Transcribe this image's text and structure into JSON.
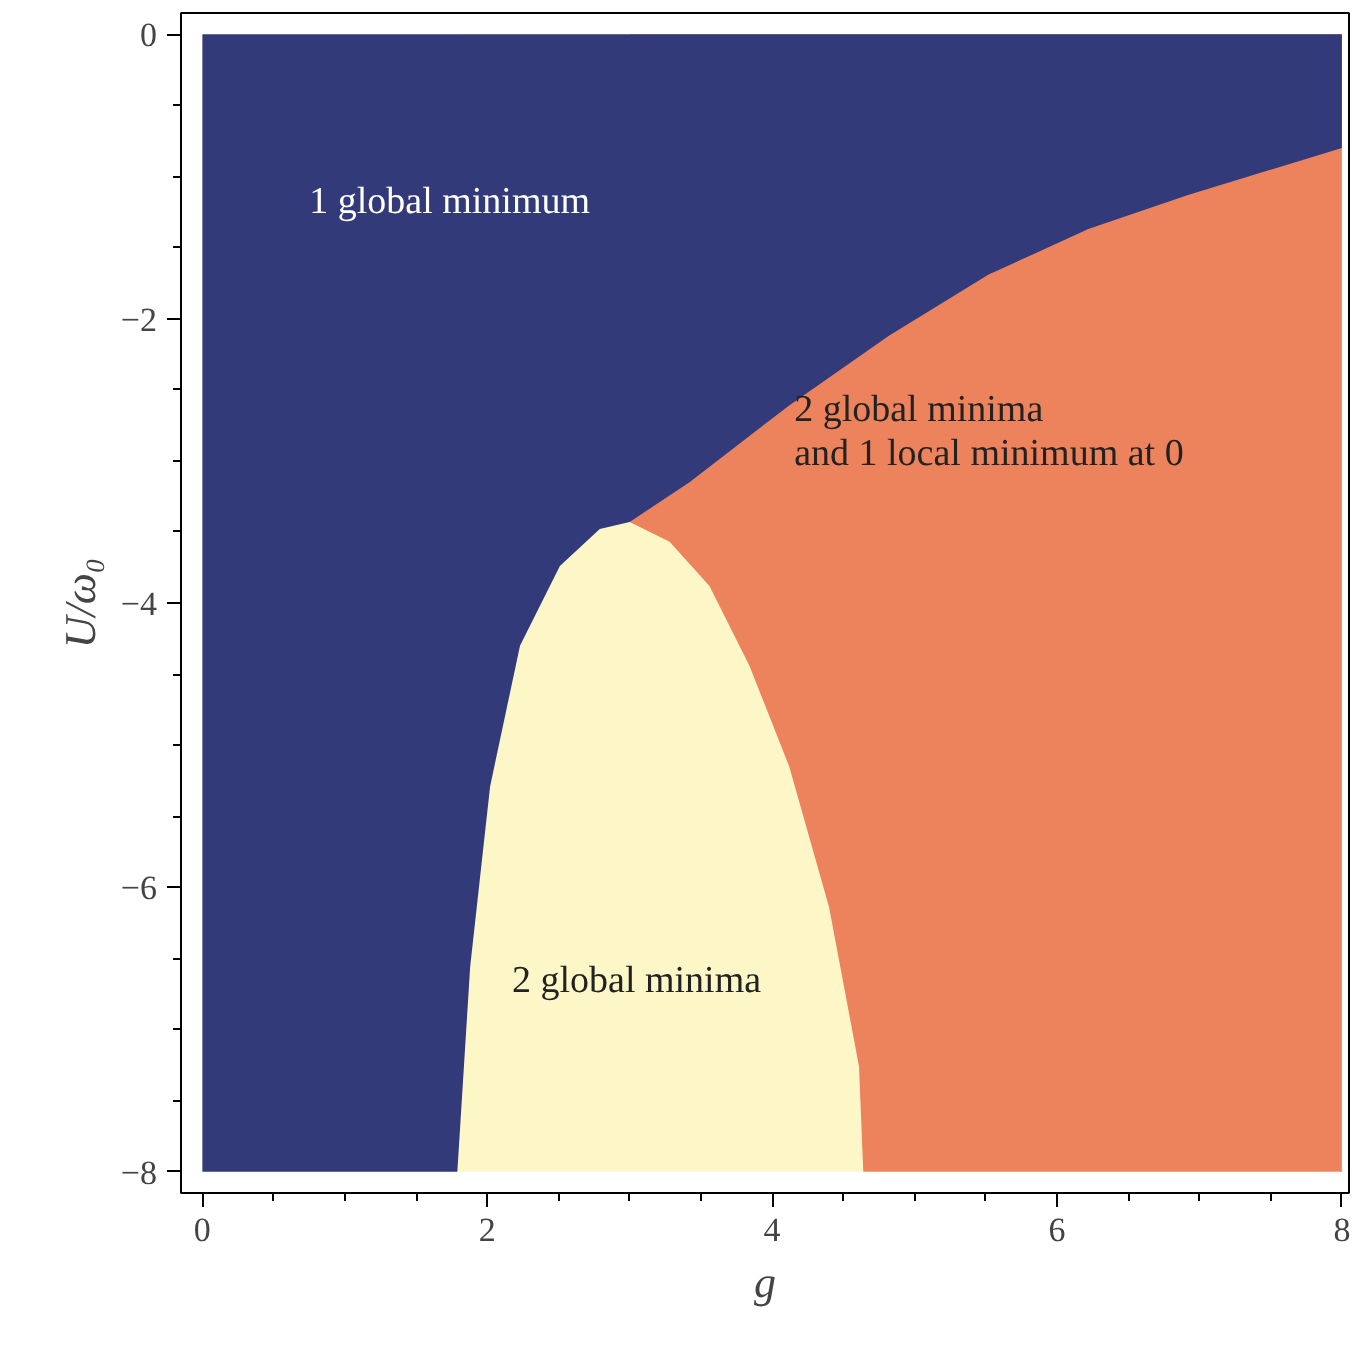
{
  "chart_data": {
    "type": "area",
    "xlabel": "g",
    "ylabel": "U/ω₀",
    "xlim": [
      -0.15,
      8.05
    ],
    "ylim": [
      -8.15,
      0.15
    ],
    "xticks": [
      0,
      2,
      4,
      6,
      8
    ],
    "yticks": [
      {
        "value": -8,
        "label": "−8"
      },
      {
        "value": -6,
        "label": "−6"
      },
      {
        "value": -4,
        "label": "−4"
      },
      {
        "value": -2,
        "label": "−2"
      },
      0
    ],
    "grid": false,
    "series": [
      {
        "color": "#fdf7c8",
        "x": [
          1.79,
          4.64
        ],
        "values": [
          -8,
          -8
        ]
      },
      {
        "color": "#ed835c",
        "x": [
          3.0,
          3.28,
          3.56,
          3.84,
          4.12,
          4.4,
          4.61,
          4.64,
          8.0
        ],
        "values": [
          -3.43,
          -3.57,
          -3.88,
          -4.44,
          -5.15,
          -6.14,
          -7.26,
          -8,
          -8
        ]
      },
      {
        "color": "#323a7a",
        "x": [
          0,
          1.79,
          1.88,
          2.02,
          2.23,
          2.51,
          2.79,
          3.0,
          3.42,
          4.12,
          4.82,
          5.52,
          6.22,
          6.92,
          8.0
        ],
        "values": [
          -8,
          -8,
          -6.56,
          -5.29,
          -4.3,
          -3.74,
          -3.48,
          -3.43,
          -3.15,
          -2.61,
          -2.12,
          -1.69,
          -1.37,
          -1.13,
          -0.8
        ]
      }
    ],
    "annotations": [
      "1 global minimum",
      "2 global minima\nand 1 local minimum at 0",
      "2 global minima"
    ]
  }
}
